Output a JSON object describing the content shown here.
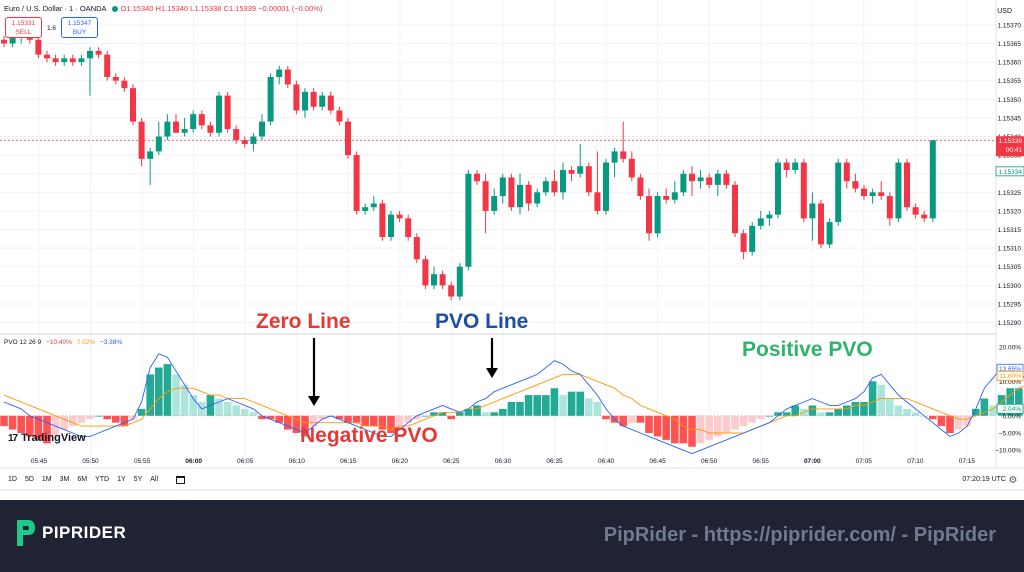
{
  "header": {
    "symbol": "Euro / U.S. Dollar · 1 · OANDA",
    "ohlc": "O1.15340 H1.15340 L1.15338 C1.15339 −0.00001 (−0.00%)",
    "sell_price": "1.15331",
    "sell_label": "SELL",
    "spread": "1.6",
    "buy_price": "1.15347",
    "buy_label": "BUY",
    "currency": "USD"
  },
  "pvo_header": {
    "name": "PVO 12 26 9",
    "v1": "−10.40%",
    "v2": "7.02%",
    "v3": "−3.38%",
    "colors": {
      "v1": "#f23645",
      "v2": "#ff9800",
      "v3": "#2962ff"
    }
  },
  "toolbar": {
    "ranges": [
      "1D",
      "5D",
      "1M",
      "3M",
      "6M",
      "YTD",
      "1Y",
      "5Y",
      "All"
    ],
    "clock": "07:20:19 UTC"
  },
  "logo": {
    "text": "TradingView",
    "mark": "17"
  },
  "annotations": [
    {
      "text": "Zero Line",
      "color": "#e53935"
    },
    {
      "text": "PVO Line",
      "color": "#1e50a2"
    },
    {
      "text": "Positive PVO",
      "color": "#2fb36a"
    },
    {
      "text": "Negative PVO",
      "color": "#e53935"
    }
  ],
  "footer": {
    "brand": "PIPRIDER",
    "url_text": "PipRider - https://piprider.com/ - PipRider"
  },
  "chart_data": [
    {
      "type": "candlestick",
      "title": "Euro / U.S. Dollar · 1 · OANDA",
      "x_ticks": [
        "05:45",
        "05:50",
        "05:55",
        "06:00",
        "06:05",
        "06:10",
        "06:15",
        "06:20",
        "06:25",
        "06:30",
        "06:35",
        "06:40",
        "06:45",
        "06:50",
        "06:55",
        "07:00",
        "07:05",
        "07:10",
        "07:15"
      ],
      "y_ticks": [
        "1.15370",
        "1.15365",
        "1.15360",
        "1.15355",
        "1.15350",
        "1.15345",
        "1.15340",
        "1.15335",
        "1.15330",
        "1.15325",
        "1.15320",
        "1.15315",
        "1.15310",
        "1.15305",
        "1.15300",
        "1.15295",
        "1.15290"
      ],
      "ylim": [
        1.15288,
        1.15374
      ],
      "last_price": "1.15339",
      "countdown": "00:41",
      "other_price": "1.15334",
      "up_color": "#089981",
      "down_color": "#f23645",
      "candles": [
        [
          1.15366,
          1.15367,
          1.15364,
          1.15365
        ],
        [
          1.15365,
          1.15368,
          1.15364,
          1.15367
        ],
        [
          1.15367,
          1.15369,
          1.15365,
          1.15368
        ],
        [
          1.15368,
          1.15369,
          1.15365,
          1.15366
        ],
        [
          1.15366,
          1.15367,
          1.15361,
          1.15362
        ],
        [
          1.15362,
          1.15363,
          1.1536,
          1.15361
        ],
        [
          1.15361,
          1.15362,
          1.15359,
          1.1536
        ],
        [
          1.1536,
          1.15362,
          1.15359,
          1.15361
        ],
        [
          1.15361,
          1.15362,
          1.15359,
          1.1536
        ],
        [
          1.1536,
          1.15362,
          1.15359,
          1.15361
        ],
        [
          1.15361,
          1.15364,
          1.15351,
          1.15363
        ],
        [
          1.15363,
          1.15364,
          1.15361,
          1.15362
        ],
        [
          1.15362,
          1.15363,
          1.15355,
          1.15356
        ],
        [
          1.15356,
          1.15357,
          1.15354,
          1.15355
        ],
        [
          1.15355,
          1.15356,
          1.15352,
          1.15353
        ],
        [
          1.15353,
          1.15354,
          1.15343,
          1.15344
        ],
        [
          1.15344,
          1.15345,
          1.15332,
          1.15334
        ],
        [
          1.15334,
          1.15337,
          1.15327,
          1.15336
        ],
        [
          1.15336,
          1.15344,
          1.15335,
          1.1534
        ],
        [
          1.1534,
          1.15346,
          1.15339,
          1.15344
        ],
        [
          1.15344,
          1.15346,
          1.15341,
          1.15341
        ],
        [
          1.15341,
          1.15345,
          1.1534,
          1.15342
        ],
        [
          1.15342,
          1.15347,
          1.15341,
          1.15346
        ],
        [
          1.15346,
          1.15347,
          1.15342,
          1.15343
        ],
        [
          1.15343,
          1.15344,
          1.1534,
          1.15341
        ],
        [
          1.15341,
          1.15352,
          1.1534,
          1.15351
        ],
        [
          1.15351,
          1.15352,
          1.15341,
          1.15342
        ],
        [
          1.15342,
          1.15343,
          1.15338,
          1.15339
        ],
        [
          1.15339,
          1.1534,
          1.15337,
          1.15338
        ],
        [
          1.15338,
          1.15341,
          1.15336,
          1.1534
        ],
        [
          1.1534,
          1.15346,
          1.15339,
          1.15344
        ],
        [
          1.15344,
          1.15357,
          1.15343,
          1.15356
        ],
        [
          1.15356,
          1.15359,
          1.15354,
          1.15358
        ],
        [
          1.15358,
          1.15359,
          1.15353,
          1.15354
        ],
        [
          1.15354,
          1.15355,
          1.15346,
          1.15347
        ],
        [
          1.15347,
          1.15353,
          1.15345,
          1.15352
        ],
        [
          1.15352,
          1.15353,
          1.15347,
          1.15348
        ],
        [
          1.15348,
          1.15352,
          1.15347,
          1.15351
        ],
        [
          1.15351,
          1.15352,
          1.15346,
          1.15347
        ],
        [
          1.15347,
          1.15348,
          1.15343,
          1.15344
        ],
        [
          1.15344,
          1.15345,
          1.15334,
          1.15335
        ],
        [
          1.15335,
          1.15336,
          1.15319,
          1.1532
        ],
        [
          1.1532,
          1.15322,
          1.15319,
          1.15321
        ],
        [
          1.15321,
          1.15324,
          1.1532,
          1.15322
        ],
        [
          1.15322,
          1.15323,
          1.15312,
          1.15313
        ],
        [
          1.15313,
          1.1532,
          1.15312,
          1.15319
        ],
        [
          1.15319,
          1.1532,
          1.15317,
          1.15318
        ],
        [
          1.15318,
          1.15319,
          1.15312,
          1.15313
        ],
        [
          1.15313,
          1.15314,
          1.15306,
          1.15307
        ],
        [
          1.15307,
          1.15308,
          1.15299,
          1.153
        ],
        [
          1.153,
          1.15305,
          1.15299,
          1.15303
        ],
        [
          1.15303,
          1.15304,
          1.15299,
          1.153
        ],
        [
          1.153,
          1.15301,
          1.15296,
          1.15297
        ],
        [
          1.15297,
          1.15306,
          1.15296,
          1.15305
        ],
        [
          1.15305,
          1.15331,
          1.15304,
          1.1533
        ],
        [
          1.1533,
          1.15331,
          1.15327,
          1.15328
        ],
        [
          1.15328,
          1.1533,
          1.15314,
          1.1532
        ],
        [
          1.1532,
          1.15326,
          1.15319,
          1.15324
        ],
        [
          1.15324,
          1.1533,
          1.15322,
          1.15329
        ],
        [
          1.15329,
          1.1533,
          1.1532,
          1.15321
        ],
        [
          1.15321,
          1.1533,
          1.15319,
          1.15327
        ],
        [
          1.15327,
          1.15328,
          1.1532,
          1.15322
        ],
        [
          1.15322,
          1.15326,
          1.15321,
          1.15325
        ],
        [
          1.15325,
          1.15329,
          1.15324,
          1.15328
        ],
        [
          1.15328,
          1.15331,
          1.15324,
          1.15325
        ],
        [
          1.15325,
          1.15333,
          1.15323,
          1.15331
        ],
        [
          1.15331,
          1.15332,
          1.15328,
          1.1533
        ],
        [
          1.1533,
          1.15338,
          1.15329,
          1.15332
        ],
        [
          1.15332,
          1.15333,
          1.15324,
          1.15325
        ],
        [
          1.15325,
          1.15336,
          1.15319,
          1.1532
        ],
        [
          1.1532,
          1.15334,
          1.15319,
          1.15333
        ],
        [
          1.15333,
          1.15337,
          1.15329,
          1.15336
        ],
        [
          1.15336,
          1.15344,
          1.15333,
          1.15334
        ],
        [
          1.15334,
          1.15336,
          1.15328,
          1.15329
        ],
        [
          1.15329,
          1.1533,
          1.15323,
          1.15324
        ],
        [
          1.15324,
          1.15326,
          1.15312,
          1.15314
        ],
        [
          1.15314,
          1.15325,
          1.15313,
          1.15324
        ],
        [
          1.15324,
          1.15326,
          1.15322,
          1.15323
        ],
        [
          1.15323,
          1.15328,
          1.15322,
          1.15325
        ],
        [
          1.15325,
          1.15331,
          1.15324,
          1.1533
        ],
        [
          1.1533,
          1.15332,
          1.15324,
          1.15328
        ],
        [
          1.15328,
          1.15331,
          1.15326,
          1.15329
        ],
        [
          1.15329,
          1.1533,
          1.15326,
          1.15327
        ],
        [
          1.15327,
          1.15331,
          1.15324,
          1.1533
        ],
        [
          1.1533,
          1.15331,
          1.15326,
          1.15327
        ],
        [
          1.15327,
          1.15328,
          1.15313,
          1.15314
        ],
        [
          1.15314,
          1.15315,
          1.15307,
          1.15309
        ],
        [
          1.15309,
          1.15317,
          1.15308,
          1.15316
        ],
        [
          1.15316,
          1.1532,
          1.15315,
          1.15318
        ],
        [
          1.15318,
          1.1532,
          1.15316,
          1.15319
        ],
        [
          1.15319,
          1.15334,
          1.15318,
          1.15333
        ],
        [
          1.15333,
          1.15334,
          1.15329,
          1.15331
        ],
        [
          1.15331,
          1.15334,
          1.1533,
          1.15333
        ],
        [
          1.15333,
          1.15334,
          1.15317,
          1.15318
        ],
        [
          1.15318,
          1.15325,
          1.15312,
          1.15322
        ],
        [
          1.15322,
          1.15323,
          1.1531,
          1.15311
        ],
        [
          1.15311,
          1.15318,
          1.1531,
          1.15317
        ],
        [
          1.15317,
          1.15334,
          1.15316,
          1.15333
        ],
        [
          1.15333,
          1.15334,
          1.15326,
          1.15328
        ],
        [
          1.15328,
          1.1533,
          1.15325,
          1.15326
        ],
        [
          1.15326,
          1.15327,
          1.15323,
          1.15324
        ],
        [
          1.15324,
          1.15326,
          1.15322,
          1.15325
        ],
        [
          1.15325,
          1.15328,
          1.15323,
          1.15324
        ],
        [
          1.15324,
          1.15325,
          1.15316,
          1.15318
        ],
        [
          1.15318,
          1.15334,
          1.15317,
          1.15333
        ],
        [
          1.15333,
          1.15334,
          1.1532,
          1.15321
        ],
        [
          1.15321,
          1.15322,
          1.15318,
          1.15319
        ],
        [
          1.15319,
          1.1532,
          1.15317,
          1.15318
        ],
        [
          1.15318,
          1.15339,
          1.15317,
          1.15339
        ]
      ]
    },
    {
      "type": "bar+line",
      "title": "PVO 12 26 9",
      "y_ticks": [
        "20.00%",
        "10.00%",
        "0.00%",
        "−5.00%",
        "−10.00%"
      ],
      "ylim": [
        -14,
        22
      ],
      "value_labels": [
        {
          "text": "13.65%",
          "color": "#2962ff"
        },
        {
          "text": "11.60%",
          "color": "#ff9800"
        },
        {
          "text": "2.04%",
          "color": "#089981"
        }
      ],
      "histogram": [
        -3,
        -4,
        -5,
        -6,
        -7,
        -8,
        -6,
        -4,
        -3,
        -2,
        -1,
        0,
        -1,
        -2,
        -3,
        -1,
        2,
        12,
        14,
        15,
        12,
        9,
        6,
        4,
        6,
        5,
        4,
        3,
        2,
        1,
        -1,
        -1,
        -2,
        -4,
        -5,
        -6,
        -3,
        -1,
        0,
        -1,
        -2,
        -2,
        -3,
        -3,
        -4,
        -5,
        -3,
        -2,
        -1,
        0,
        1,
        1,
        -1,
        1,
        2,
        3,
        1,
        1,
        2,
        4,
        4,
        6,
        6,
        6,
        8,
        6,
        7,
        7,
        5,
        4,
        -1,
        -2,
        -3,
        -2,
        -2,
        -5,
        -6,
        -7,
        -8,
        -8,
        -9,
        -8,
        -7,
        -6,
        -5,
        -4,
        -3,
        -2,
        -1,
        0,
        1,
        1,
        3,
        2,
        3,
        1,
        1,
        2,
        3,
        4,
        4,
        10,
        9,
        5,
        3,
        2,
        1,
        0,
        -1,
        -3,
        -5,
        -4,
        -3,
        2,
        5,
        3,
        6,
        8,
        8,
        4,
        3,
        2,
        2,
        2,
        1,
        1,
        1,
        2
      ],
      "pvo_line": [
        4,
        3,
        2,
        0,
        -1,
        -2,
        -3,
        -4,
        -5,
        -6,
        -6,
        -5,
        -4,
        -3,
        -2,
        -1,
        4,
        14,
        18,
        17,
        13,
        9,
        5,
        2,
        3,
        4,
        5,
        4,
        3,
        2,
        0,
        -1,
        -2,
        -3,
        -4,
        -5,
        -3,
        -1,
        0,
        -1,
        -2,
        -3,
        -4,
        -5,
        -6,
        -6,
        -4,
        -2,
        0,
        1,
        2,
        3,
        2,
        1,
        2,
        4,
        5,
        7,
        8,
        9,
        10,
        11,
        12,
        14,
        16,
        15,
        13,
        12,
        9,
        6,
        2,
        -1,
        -3,
        -4,
        -5,
        -6,
        -7,
        -8,
        -9,
        -10,
        -11,
        -10,
        -9,
        -8,
        -7,
        -6,
        -5,
        -4,
        -3,
        -2,
        0,
        2,
        3,
        4,
        5,
        4,
        3,
        3,
        4,
        5,
        7,
        11,
        12,
        9,
        6,
        4,
        2,
        0,
        -2,
        -4,
        -6,
        -5,
        -3,
        2,
        8,
        11,
        14,
        15,
        13,
        10,
        8,
        9,
        10,
        12,
        13,
        14,
        13
      ],
      "signal_line": [
        6,
        5,
        4,
        3,
        2,
        1,
        0,
        -1,
        -2,
        -3,
        -3,
        -3,
        -3,
        -3,
        -3,
        -2,
        -1,
        2,
        5,
        7,
        8,
        8,
        8,
        7,
        6,
        6,
        5,
        5,
        5,
        4,
        3,
        2,
        1,
        0,
        -1,
        -2,
        -2,
        -2,
        -2,
        -2,
        -2,
        -2,
        -3,
        -3,
        -3,
        -4,
        -3,
        -3,
        -2,
        -1,
        0,
        1,
        1,
        1,
        2,
        2,
        3,
        4,
        5,
        6,
        7,
        8,
        9,
        10,
        11,
        12,
        12,
        12,
        11,
        10,
        9,
        8,
        6,
        5,
        3,
        2,
        1,
        0,
        -1,
        -3,
        -4,
        -4,
        -5,
        -5,
        -5,
        -5,
        -5,
        -4,
        -3,
        -2,
        -1,
        0,
        0,
        1,
        2,
        2,
        2,
        2,
        2,
        3,
        3,
        4,
        5,
        5,
        5,
        5,
        4,
        3,
        2,
        1,
        0,
        -1,
        -1,
        0,
        1,
        2,
        4,
        6,
        8,
        9,
        10,
        10,
        10,
        11,
        11,
        12,
        12
      ]
    }
  ]
}
